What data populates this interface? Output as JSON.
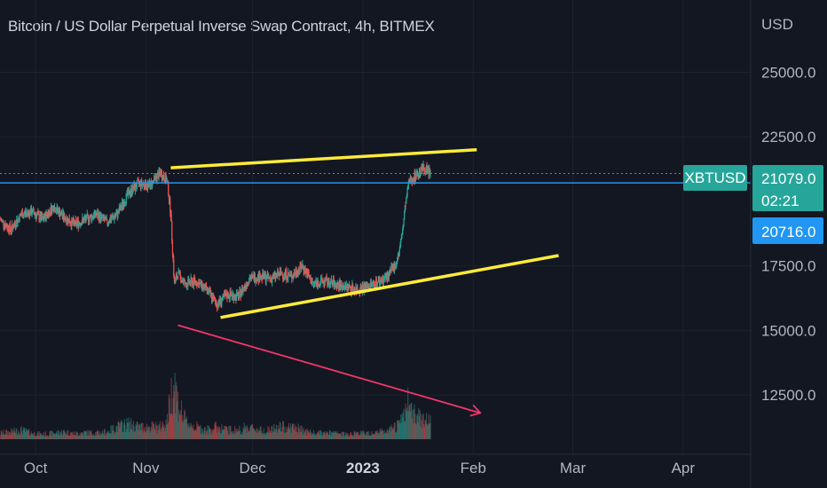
{
  "title": "Bitcoin / US Dollar Perpetual Inverse Swap Contract, 4h, BITMEX",
  "currency_label": "USD",
  "ticker_label": "XBTUSD",
  "last_price": "21079.0",
  "countdown": "02:21",
  "crosshair_price": "20716.0",
  "colors": {
    "background": "#131722",
    "up": "#26a69a",
    "down": "#ef5350",
    "trendline": "#ffeb3b",
    "arrow": "#f23668",
    "price_line": "#2196f3",
    "ticker_badge": "#26a69a"
  },
  "chart_data": {
    "type": "candlestick",
    "title": "Bitcoin / US Dollar Perpetual Inverse Swap Contract, 4h, BITMEX",
    "symbol": "XBTUSD",
    "y_tick_labels": [
      "25000.0",
      "22500.0",
      "17500.0",
      "15000.0",
      "12500.0"
    ],
    "y_ticks": [
      25000,
      22500,
      17500,
      15000,
      12500
    ],
    "x_tick_labels": [
      "Oct",
      "Nov",
      "Dec",
      "2023",
      "Feb",
      "Mar",
      "Apr"
    ],
    "x_ticks": [
      "2022-10-01",
      "2022-11-01",
      "2022-12-01",
      "2023-01-01",
      "2023-02-01",
      "2023-03-01",
      "2023-04-01"
    ],
    "x_range": [
      "2022-09-21",
      "2023-04-20"
    ],
    "y_range": [
      10200,
      27800
    ],
    "last_price": 21079.0,
    "crosshair_price": 20716.0,
    "series": [
      {
        "x": [
          "2022-09-21",
          "2022-09-24",
          "2022-09-27",
          "2022-09-30",
          "2022-10-03",
          "2022-10-06",
          "2022-10-09",
          "2022-10-12",
          "2022-10-15",
          "2022-10-18",
          "2022-10-21",
          "2022-10-24",
          "2022-10-27",
          "2022-10-30",
          "2022-11-02",
          "2022-11-05",
          "2022-11-07",
          "2022-11-08",
          "2022-11-09",
          "2022-11-10",
          "2022-11-12",
          "2022-11-15",
          "2022-11-18",
          "2022-11-21",
          "2022-11-24",
          "2022-11-27",
          "2022-11-30",
          "2022-12-03",
          "2022-12-06",
          "2022-12-09",
          "2022-12-12",
          "2022-12-15",
          "2022-12-18",
          "2022-12-21",
          "2022-12-24",
          "2022-12-27",
          "2022-12-30",
          "2023-01-02",
          "2023-01-05",
          "2023-01-08",
          "2023-01-10",
          "2023-01-11",
          "2023-01-12",
          "2023-01-13",
          "2023-01-14",
          "2023-01-16",
          "2023-01-18",
          "2023-01-20"
        ],
        "close": [
          19300,
          18900,
          19500,
          19600,
          19300,
          19800,
          19400,
          19100,
          19300,
          19500,
          19200,
          19500,
          20300,
          20700,
          20600,
          21100,
          20800,
          19500,
          16800,
          17200,
          16800,
          16900,
          16600,
          16000,
          16400,
          16300,
          17000,
          17100,
          17000,
          17200,
          17100,
          17500,
          16800,
          16900,
          16800,
          16700,
          16600,
          16700,
          16850,
          17100,
          17500,
          17900,
          18700,
          19900,
          20800,
          21000,
          21300,
          21079
        ],
        "volume_relative": [
          0.1,
          0.12,
          0.15,
          0.1,
          0.08,
          0.1,
          0.12,
          0.09,
          0.11,
          0.1,
          0.12,
          0.2,
          0.25,
          0.2,
          0.2,
          0.2,
          0.3,
          0.7,
          1.0,
          0.6,
          0.3,
          0.2,
          0.15,
          0.2,
          0.15,
          0.15,
          0.2,
          0.15,
          0.15,
          0.2,
          0.2,
          0.15,
          0.1,
          0.1,
          0.1,
          0.08,
          0.1,
          0.1,
          0.12,
          0.12,
          0.2,
          0.25,
          0.3,
          0.5,
          0.6,
          0.4,
          0.35,
          0.3
        ]
      }
    ],
    "drawings": [
      {
        "type": "trendline",
        "name": "upper-resistance",
        "from": {
          "date": "2022-11-08",
          "price": 21300
        },
        "to": {
          "date": "2023-02-02",
          "price": 22000
        }
      },
      {
        "type": "trendline",
        "name": "lower-support",
        "from": {
          "date": "2022-11-22",
          "price": 15500
        },
        "to": {
          "date": "2023-02-25",
          "price": 17900
        }
      },
      {
        "type": "arrow",
        "name": "bearish-arrow",
        "from": {
          "date": "2022-11-10",
          "price": 15200
        },
        "to": {
          "date": "2023-02-03",
          "price": 11800
        }
      }
    ]
  }
}
